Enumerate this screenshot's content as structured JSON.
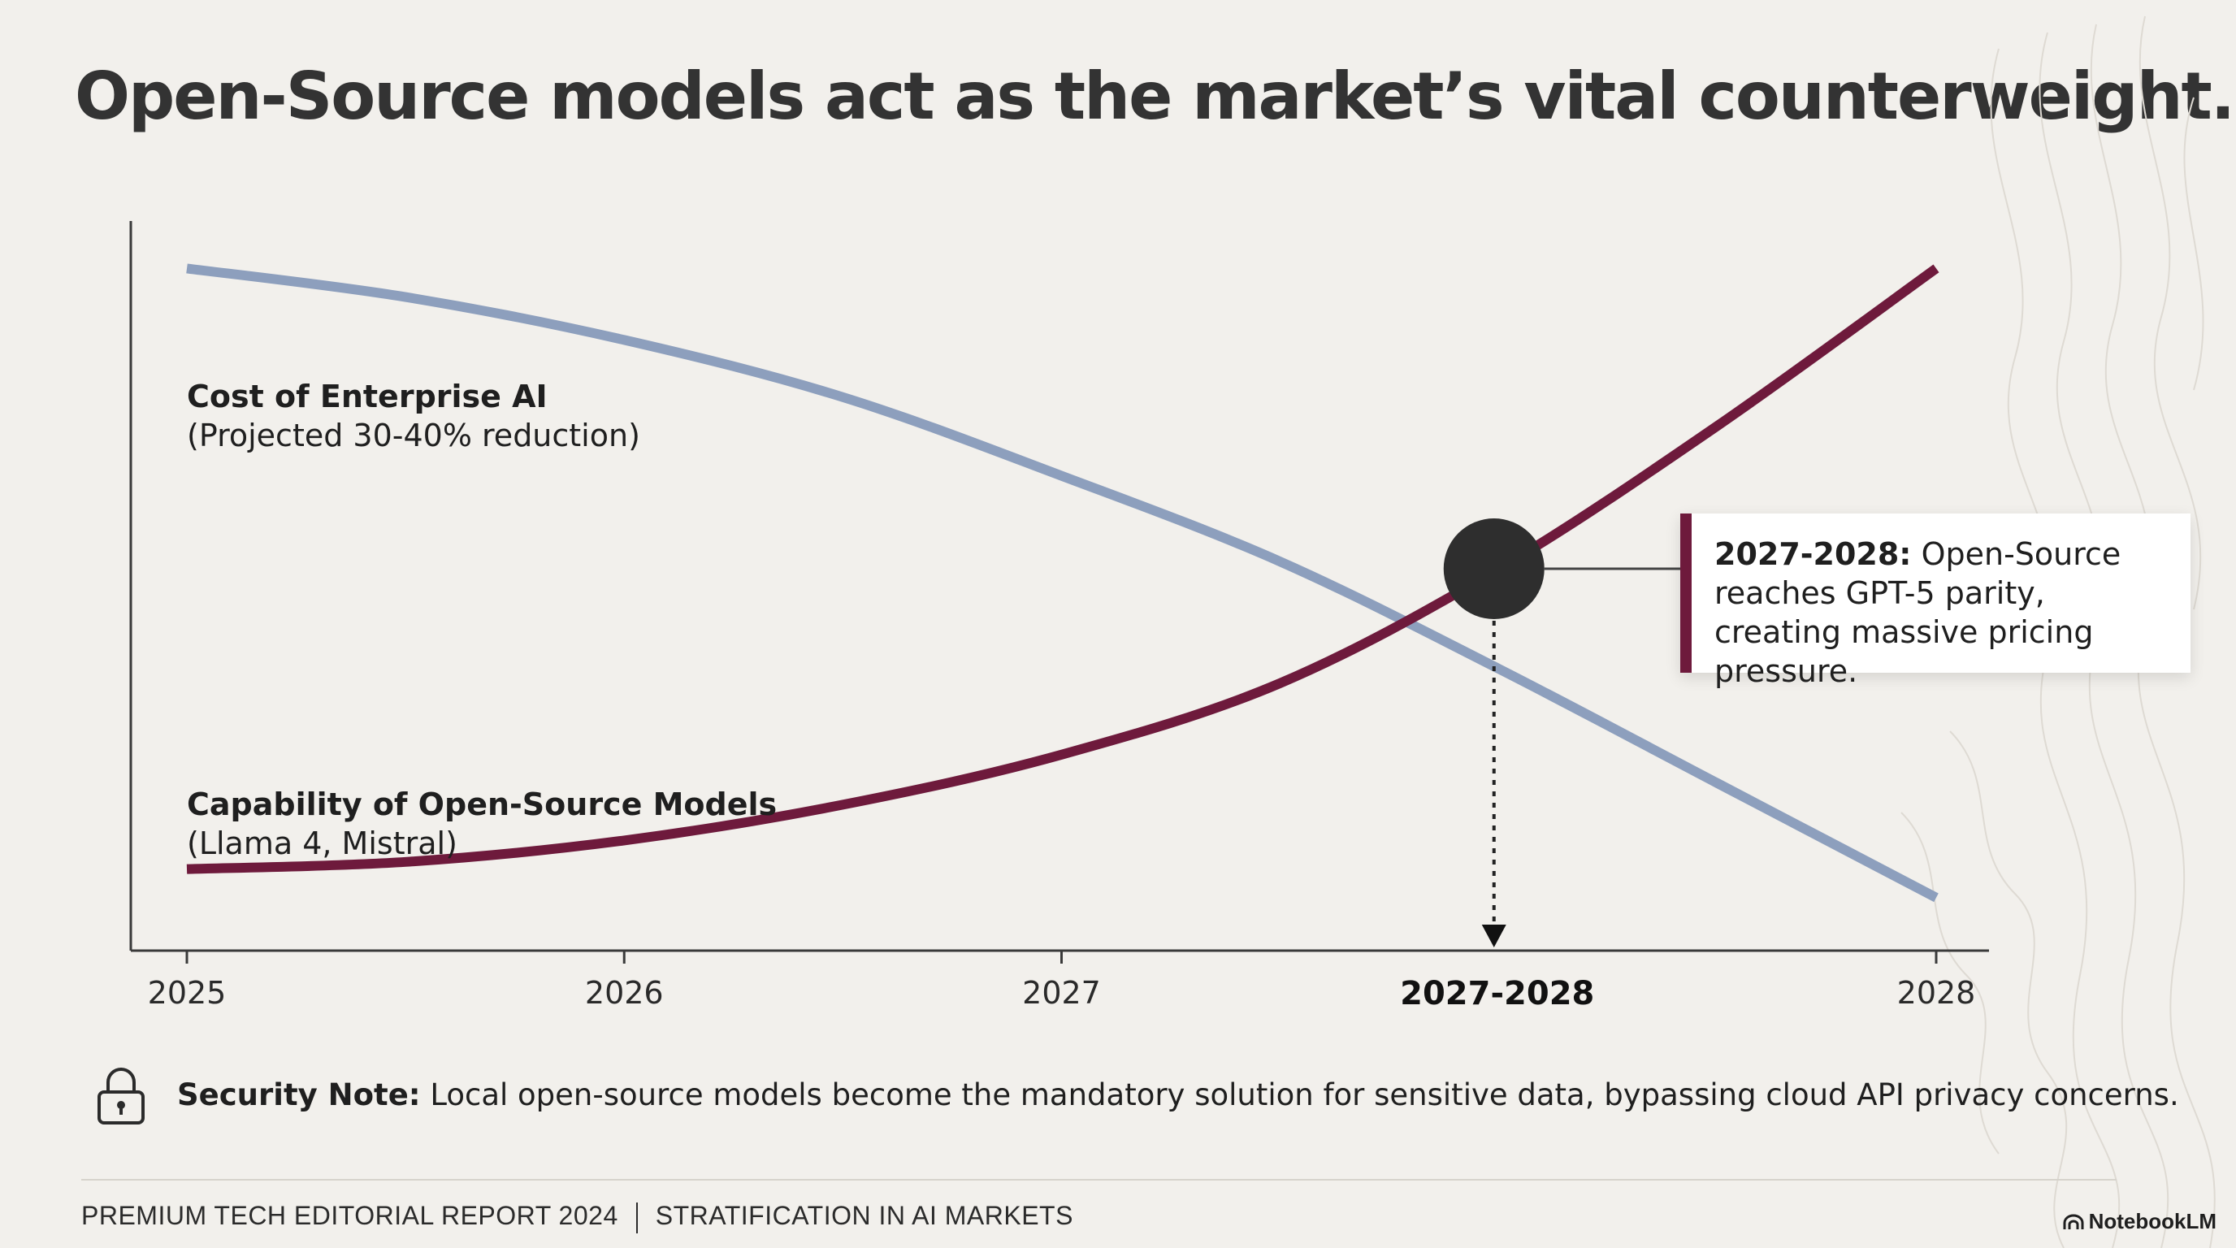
{
  "title": "Open-Source models act as the market’s vital counterweight.",
  "chart_data": {
    "type": "line",
    "title": "",
    "xlabel": "",
    "ylabel": "",
    "x_ticks": [
      "2025",
      "2026",
      "2027",
      "2027-2028",
      "2028"
    ],
    "x_tick_values": [
      2025,
      2026,
      2027,
      2028,
      2029
    ],
    "highlighted_tick": "2027-2028",
    "xlim": [
      2025,
      2029
    ],
    "ylim": [
      0,
      100
    ],
    "grid": false,
    "legend": "inline labels",
    "series": [
      {
        "name": "Cost of Enterprise AI",
        "note": "(Projected 30-40% reduction)",
        "color": "#8d9fbd",
        "x": [
          2025,
          2025.5,
          2026,
          2026.5,
          2027,
          2027.5,
          2028,
          2028.5,
          2029
        ],
        "y": [
          92,
          88,
          82,
          74,
          63,
          51,
          36,
          20,
          4
        ]
      },
      {
        "name": "Capability of Open-Source Models",
        "note": "(Llama 4, Mistral)",
        "color": "#6e1a3c",
        "x": [
          2025,
          2025.5,
          2026,
          2026.5,
          2027,
          2027.5,
          2028,
          2028.5,
          2029
        ],
        "y": [
          8,
          9,
          12,
          17,
          24,
          34,
          50,
          70,
          92
        ]
      }
    ],
    "annotation": {
      "x": 2028,
      "y": 50,
      "marker_color": "#2e2e2e",
      "head": "2027-2028:",
      "text": "Open-Source reaches GPT-5 parity, creating massive pricing pressure."
    }
  },
  "security_note": {
    "icon": "lock-icon",
    "lead": "Security Note:",
    "text": "Local open-source models become the mandatory solution for sensitive data, bypassing cloud API privacy concerns."
  },
  "footer": {
    "left": "PREMIUM TECH EDITORIAL REPORT 2024",
    "right": "STRATIFICATION IN AI MARKETS",
    "brand": "NotebookLM"
  }
}
